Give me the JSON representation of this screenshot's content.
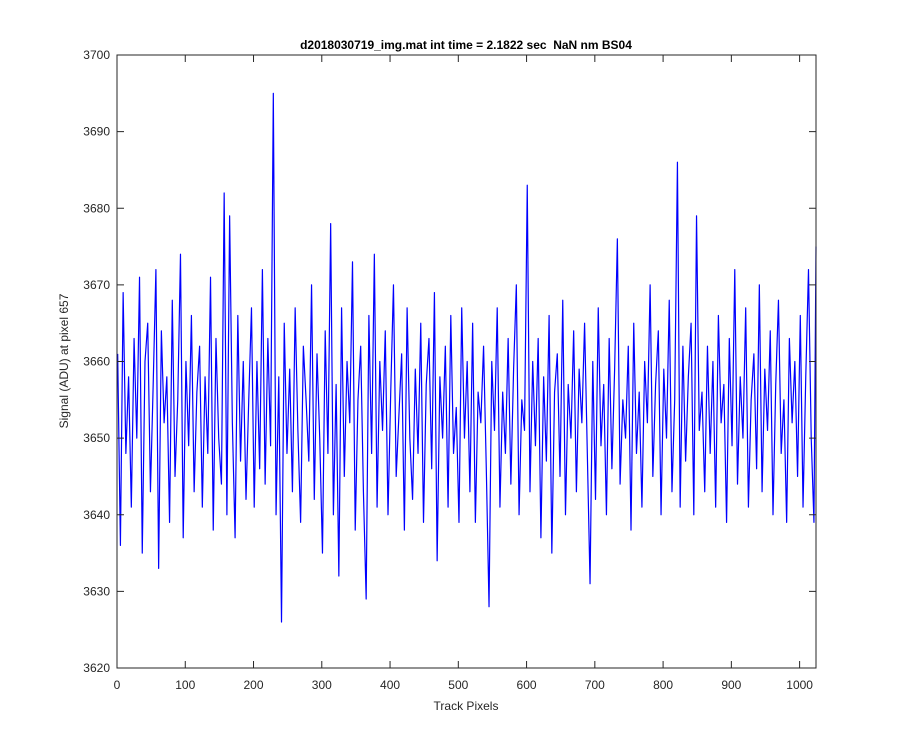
{
  "chart_data": {
    "type": "line",
    "title": "d2018030719_img.mat int time = 2.1822 sec  NaN nm BS04",
    "x_label": "Track Pixels",
    "y_label": "Signal (ADU) at pixel 657",
    "xlim": [
      0,
      1024
    ],
    "ylim": [
      3620,
      3700
    ],
    "xticks": [
      0,
      100,
      200,
      300,
      400,
      500,
      600,
      700,
      800,
      900,
      1000
    ],
    "yticks": [
      3620,
      3630,
      3640,
      3650,
      3660,
      3670,
      3680,
      3690,
      3700
    ],
    "grid": false,
    "series": [
      {
        "name": "signal",
        "color": "#0000ff",
        "x": [
          1,
          5,
          9,
          13,
          17,
          21,
          25,
          29,
          33,
          37,
          41,
          45,
          49,
          53,
          57,
          61,
          65,
          69,
          73,
          77,
          81,
          85,
          89,
          93,
          97,
          101,
          105,
          109,
          113,
          117,
          121,
          125,
          129,
          133,
          137,
          141,
          145,
          149,
          153,
          157,
          161,
          165,
          169,
          173,
          177,
          181,
          185,
          189,
          193,
          197,
          201,
          205,
          209,
          213,
          217,
          221,
          225,
          229,
          233,
          237,
          241,
          245,
          249,
          253,
          257,
          261,
          265,
          269,
          273,
          277,
          281,
          285,
          289,
          293,
          297,
          301,
          305,
          309,
          313,
          317,
          321,
          325,
          329,
          333,
          337,
          341,
          345,
          349,
          353,
          357,
          361,
          365,
          369,
          373,
          377,
          381,
          385,
          389,
          393,
          397,
          401,
          405,
          409,
          413,
          417,
          421,
          425,
          429,
          433,
          437,
          441,
          445,
          449,
          453,
          457,
          461,
          465,
          469,
          473,
          477,
          481,
          485,
          489,
          493,
          497,
          501,
          505,
          509,
          513,
          517,
          521,
          525,
          529,
          533,
          537,
          541,
          545,
          549,
          553,
          557,
          561,
          565,
          569,
          573,
          577,
          581,
          585,
          589,
          593,
          597,
          601,
          605,
          609,
          613,
          617,
          621,
          625,
          629,
          633,
          637,
          641,
          645,
          649,
          653,
          657,
          661,
          665,
          669,
          673,
          677,
          681,
          685,
          689,
          693,
          697,
          701,
          705,
          709,
          713,
          717,
          721,
          725,
          729,
          733,
          737,
          741,
          745,
          749,
          753,
          757,
          761,
          765,
          769,
          773,
          777,
          781,
          785,
          789,
          793,
          797,
          801,
          805,
          809,
          813,
          817,
          821,
          825,
          829,
          833,
          837,
          841,
          845,
          849,
          853,
          857,
          861,
          865,
          869,
          873,
          877,
          881,
          885,
          889,
          893,
          897,
          901,
          905,
          909,
          913,
          917,
          921,
          925,
          929,
          933,
          937,
          941,
          945,
          949,
          953,
          957,
          961,
          965,
          969,
          973,
          977,
          981,
          985,
          989,
          993,
          997,
          1001,
          1005,
          1009,
          1013,
          1017,
          1021,
          1024
        ],
        "values": [
          3661,
          3636,
          3669,
          3648,
          3658,
          3641,
          3663,
          3650,
          3671,
          3635,
          3660,
          3665,
          3643,
          3657,
          3672,
          3633,
          3664,
          3652,
          3658,
          3639,
          3668,
          3645,
          3655,
          3674,
          3637,
          3660,
          3649,
          3666,
          3643,
          3656,
          3662,
          3641,
          3658,
          3648,
          3671,
          3638,
          3663,
          3650,
          3644,
          3682,
          3640,
          3679,
          3652,
          3637,
          3666,
          3647,
          3660,
          3642,
          3655,
          3667,
          3641,
          3660,
          3646,
          3672,
          3644,
          3663,
          3649,
          3695,
          3640,
          3658,
          3626,
          3665,
          3648,
          3659,
          3643,
          3667,
          3651,
          3639,
          3662,
          3655,
          3647,
          3670,
          3642,
          3661,
          3650,
          3635,
          3664,
          3648,
          3678,
          3640,
          3657,
          3632,
          3667,
          3645,
          3660,
          3652,
          3673,
          3638,
          3655,
          3662,
          3643,
          3629,
          3666,
          3648,
          3674,
          3641,
          3660,
          3651,
          3664,
          3640,
          3656,
          3670,
          3645,
          3653,
          3661,
          3638,
          3667,
          3650,
          3642,
          3659,
          3648,
          3665,
          3639,
          3657,
          3663,
          3646,
          3669,
          3634,
          3658,
          3650,
          3662,
          3641,
          3666,
          3648,
          3654,
          3639,
          3667,
          3650,
          3660,
          3643,
          3665,
          3639,
          3656,
          3652,
          3662,
          3646,
          3628,
          3660,
          3651,
          3667,
          3641,
          3656,
          3648,
          3663,
          3644,
          3659,
          3670,
          3640,
          3655,
          3651,
          3683,
          3643,
          3660,
          3649,
          3663,
          3637,
          3658,
          3647,
          3666,
          3635,
          3656,
          3661,
          3645,
          3668,
          3640,
          3657,
          3650,
          3664,
          3643,
          3659,
          3652,
          3665,
          3648,
          3631,
          3660,
          3642,
          3667,
          3649,
          3657,
          3640,
          3663,
          3646,
          3659,
          3676,
          3644,
          3655,
          3650,
          3662,
          3638,
          3665,
          3648,
          3656,
          3641,
          3660,
          3652,
          3670,
          3645,
          3657,
          3664,
          3640,
          3659,
          3650,
          3668,
          3643,
          3655,
          3686,
          3641,
          3662,
          3647,
          3658,
          3665,
          3640,
          3679,
          3651,
          3656,
          3643,
          3662,
          3648,
          3660,
          3641,
          3666,
          3652,
          3657,
          3639,
          3663,
          3649,
          3672,
          3644,
          3658,
          3650,
          3667,
          3641,
          3655,
          3661,
          3646,
          3670,
          3643,
          3659,
          3651,
          3664,
          3640,
          3657,
          3668,
          3648,
          3655,
          3639,
          3663,
          3652,
          3660,
          3645,
          3666,
          3641,
          3658,
          3672,
          3650,
          3639,
          3675
        ]
      }
    ]
  }
}
